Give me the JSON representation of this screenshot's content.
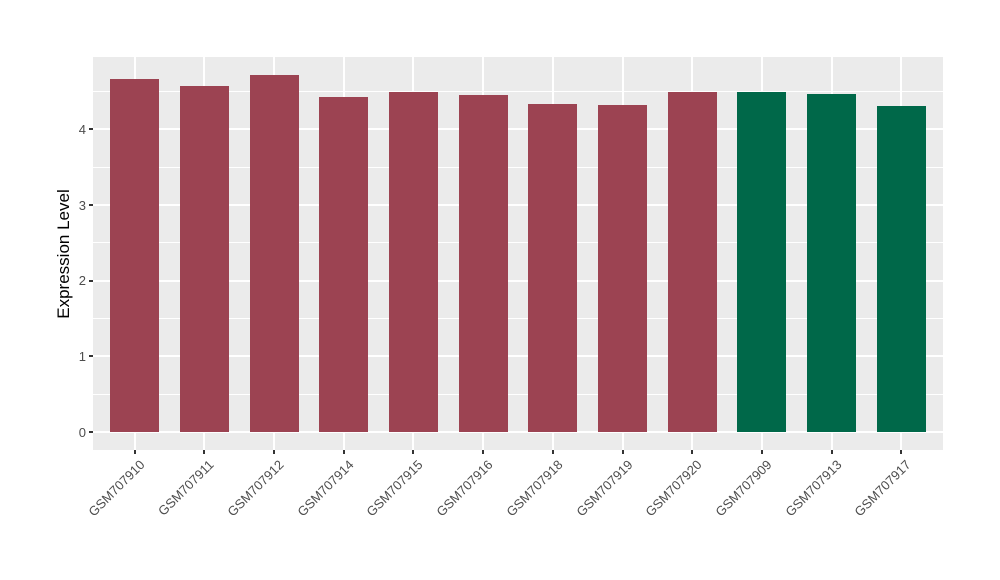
{
  "chart_data": {
    "type": "bar",
    "title": "",
    "xlabel": "",
    "ylabel": "Expression Level",
    "categories": [
      "GSM707910",
      "GSM707911",
      "GSM707912",
      "GSM707914",
      "GSM707915",
      "GSM707916",
      "GSM707918",
      "GSM707919",
      "GSM707920",
      "GSM707909",
      "GSM707913",
      "GSM707917"
    ],
    "values": [
      4.66,
      4.57,
      4.72,
      4.43,
      4.49,
      4.46,
      4.33,
      4.32,
      4.5,
      4.5,
      4.47,
      4.31
    ],
    "bar_colors": [
      "#9C4352",
      "#9C4352",
      "#9C4352",
      "#9C4352",
      "#9C4352",
      "#9C4352",
      "#9C4352",
      "#9C4352",
      "#9C4352",
      "#006849",
      "#006849",
      "#006849"
    ],
    "group_colors": {
      "group1_maroon": "#9C4352",
      "group2_green": "#006849"
    },
    "yticks": [
      0,
      1,
      2,
      3,
      4
    ],
    "ylim": [
      0,
      4.97
    ],
    "bar_width_fraction": 0.7,
    "grid": "major-white-minor-white",
    "legend_position": "none",
    "panel_background": "#EBEBEB",
    "grid_color": "#FFFFFF",
    "axis_text_color": "#4D4D4D",
    "tick_mark_color": "#333333"
  }
}
